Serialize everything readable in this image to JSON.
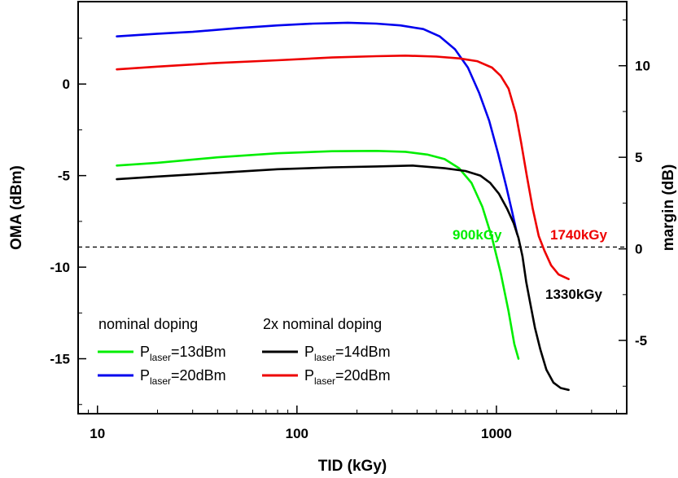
{
  "chart_data": {
    "type": "line",
    "xlabel": "TID (kGy)",
    "ylabel": "OMA (dBm)",
    "y2label": "margin (dB)",
    "x_scale": "log",
    "xlim": [
      8,
      4500
    ],
    "ylim": [
      -18,
      4.5
    ],
    "y2lim": [
      -9,
      13.5
    ],
    "x_ticks": [
      10,
      100,
      1000
    ],
    "x_tick_labels": [
      "10",
      "100",
      "1000"
    ],
    "y_ticks": [
      -15,
      -10,
      -5,
      0
    ],
    "y_tick_labels": [
      "-15",
      "-10",
      "-5",
      "0"
    ],
    "y2_ticks": [
      -5,
      0,
      5,
      10
    ],
    "y2_tick_labels": [
      "-5",
      "0",
      "5",
      "10"
    ],
    "threshold_oma": -8.9,
    "grid": false,
    "legend_groups": [
      {
        "title": "nominal doping",
        "entries": [
          0,
          1
        ]
      },
      {
        "title": "2x nominal doping",
        "entries": [
          2,
          3
        ]
      }
    ],
    "series": [
      {
        "legend_main": "P",
        "legend_sub": "laser",
        "legend_rest": "=13dBm",
        "color": "#00ee00",
        "points": [
          [
            12.5,
            -4.45
          ],
          [
            20,
            -4.3
          ],
          [
            40,
            -4.0
          ],
          [
            80,
            -3.78
          ],
          [
            150,
            -3.67
          ],
          [
            250,
            -3.65
          ],
          [
            350,
            -3.7
          ],
          [
            450,
            -3.85
          ],
          [
            550,
            -4.1
          ],
          [
            650,
            -4.6
          ],
          [
            750,
            -5.4
          ],
          [
            850,
            -6.7
          ],
          [
            950,
            -8.4
          ],
          [
            1050,
            -10.3
          ],
          [
            1150,
            -12.4
          ],
          [
            1230,
            -14.2
          ],
          [
            1290,
            -15.0
          ]
        ]
      },
      {
        "legend_main": "P",
        "legend_sub": "laser",
        "legend_rest": "=20dBm",
        "color": "#0000ee",
        "points": [
          [
            12.5,
            2.6
          ],
          [
            20,
            2.75
          ],
          [
            30,
            2.85
          ],
          [
            50,
            3.05
          ],
          [
            80,
            3.2
          ],
          [
            120,
            3.3
          ],
          [
            180,
            3.35
          ],
          [
            250,
            3.3
          ],
          [
            330,
            3.2
          ],
          [
            430,
            3.0
          ],
          [
            520,
            2.6
          ],
          [
            620,
            1.9
          ],
          [
            720,
            0.9
          ],
          [
            820,
            -0.5
          ],
          [
            920,
            -2.0
          ],
          [
            1020,
            -3.8
          ],
          [
            1120,
            -5.6
          ],
          [
            1200,
            -7.0
          ],
          [
            1270,
            -8.2
          ]
        ]
      },
      {
        "legend_main": "P",
        "legend_sub": "laser",
        "legend_rest": "=14dBm",
        "color": "#000000",
        "points": [
          [
            12.5,
            -5.2
          ],
          [
            20,
            -5.05
          ],
          [
            40,
            -4.85
          ],
          [
            80,
            -4.65
          ],
          [
            150,
            -4.55
          ],
          [
            250,
            -4.5
          ],
          [
            380,
            -4.45
          ],
          [
            550,
            -4.6
          ],
          [
            700,
            -4.75
          ],
          [
            830,
            -5.0
          ],
          [
            930,
            -5.4
          ],
          [
            1030,
            -6.0
          ],
          [
            1130,
            -6.8
          ],
          [
            1220,
            -7.6
          ],
          [
            1290,
            -8.4
          ],
          [
            1350,
            -9.4
          ],
          [
            1410,
            -10.8
          ],
          [
            1480,
            -12.0
          ],
          [
            1560,
            -13.3
          ],
          [
            1660,
            -14.5
          ],
          [
            1780,
            -15.6
          ],
          [
            1930,
            -16.3
          ],
          [
            2100,
            -16.6
          ],
          [
            2300,
            -16.7
          ]
        ]
      },
      {
        "legend_main": "P",
        "legend_sub": "laser",
        "legend_rest": "=20dBm",
        "color": "#ee0000",
        "points": [
          [
            12.5,
            0.8
          ],
          [
            20,
            0.95
          ],
          [
            40,
            1.15
          ],
          [
            80,
            1.3
          ],
          [
            150,
            1.45
          ],
          [
            250,
            1.52
          ],
          [
            350,
            1.55
          ],
          [
            500,
            1.5
          ],
          [
            650,
            1.4
          ],
          [
            800,
            1.25
          ],
          [
            950,
            0.9
          ],
          [
            1050,
            0.45
          ],
          [
            1150,
            -0.25
          ],
          [
            1250,
            -1.6
          ],
          [
            1330,
            -3.2
          ],
          [
            1420,
            -5.0
          ],
          [
            1520,
            -6.8
          ],
          [
            1630,
            -8.3
          ],
          [
            1740,
            -9.1
          ],
          [
            1880,
            -9.9
          ],
          [
            2050,
            -10.4
          ],
          [
            2300,
            -10.65
          ]
        ]
      }
    ],
    "annotations": [
      {
        "text": "900kGy",
        "color": "#00ee00",
        "x": 900
      },
      {
        "text": "1740kGy",
        "color": "#ee0000",
        "x": 1740
      },
      {
        "text": "1330kGy",
        "color": "#000000",
        "x": 1330
      }
    ]
  }
}
